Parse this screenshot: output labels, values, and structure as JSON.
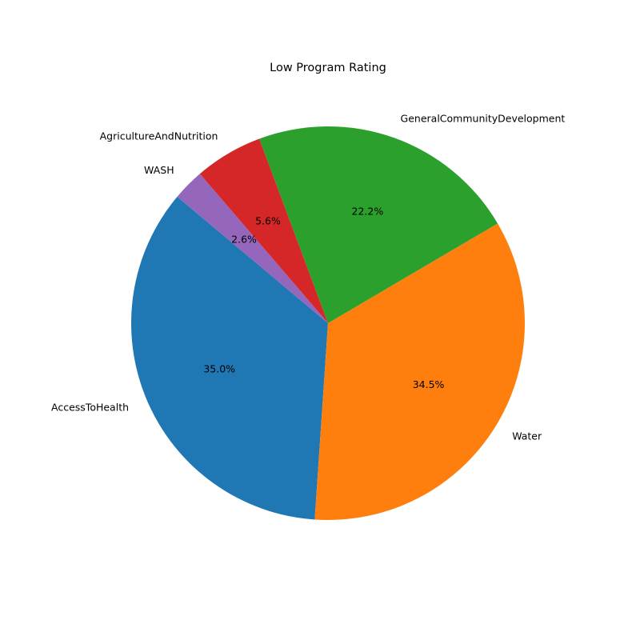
{
  "chart_data": {
    "type": "pie",
    "title": "Low Program Rating",
    "categories": [
      "AccessToHealth",
      "Water",
      "GeneralCommunityDevelopment",
      "AgricultureAndNutrition",
      "WASH"
    ],
    "values": [
      35.0,
      34.5,
      22.2,
      5.6,
      2.6
    ],
    "percent_labels": [
      "35.0%",
      "34.5%",
      "22.2%",
      "5.6%",
      "2.6%"
    ],
    "colors": [
      "#1f77b4",
      "#ff7f0e",
      "#2ca02c",
      "#d62728",
      "#9467bd"
    ],
    "start_angle_deg": 140,
    "direction": "counterclockwise",
    "legend": "none"
  }
}
